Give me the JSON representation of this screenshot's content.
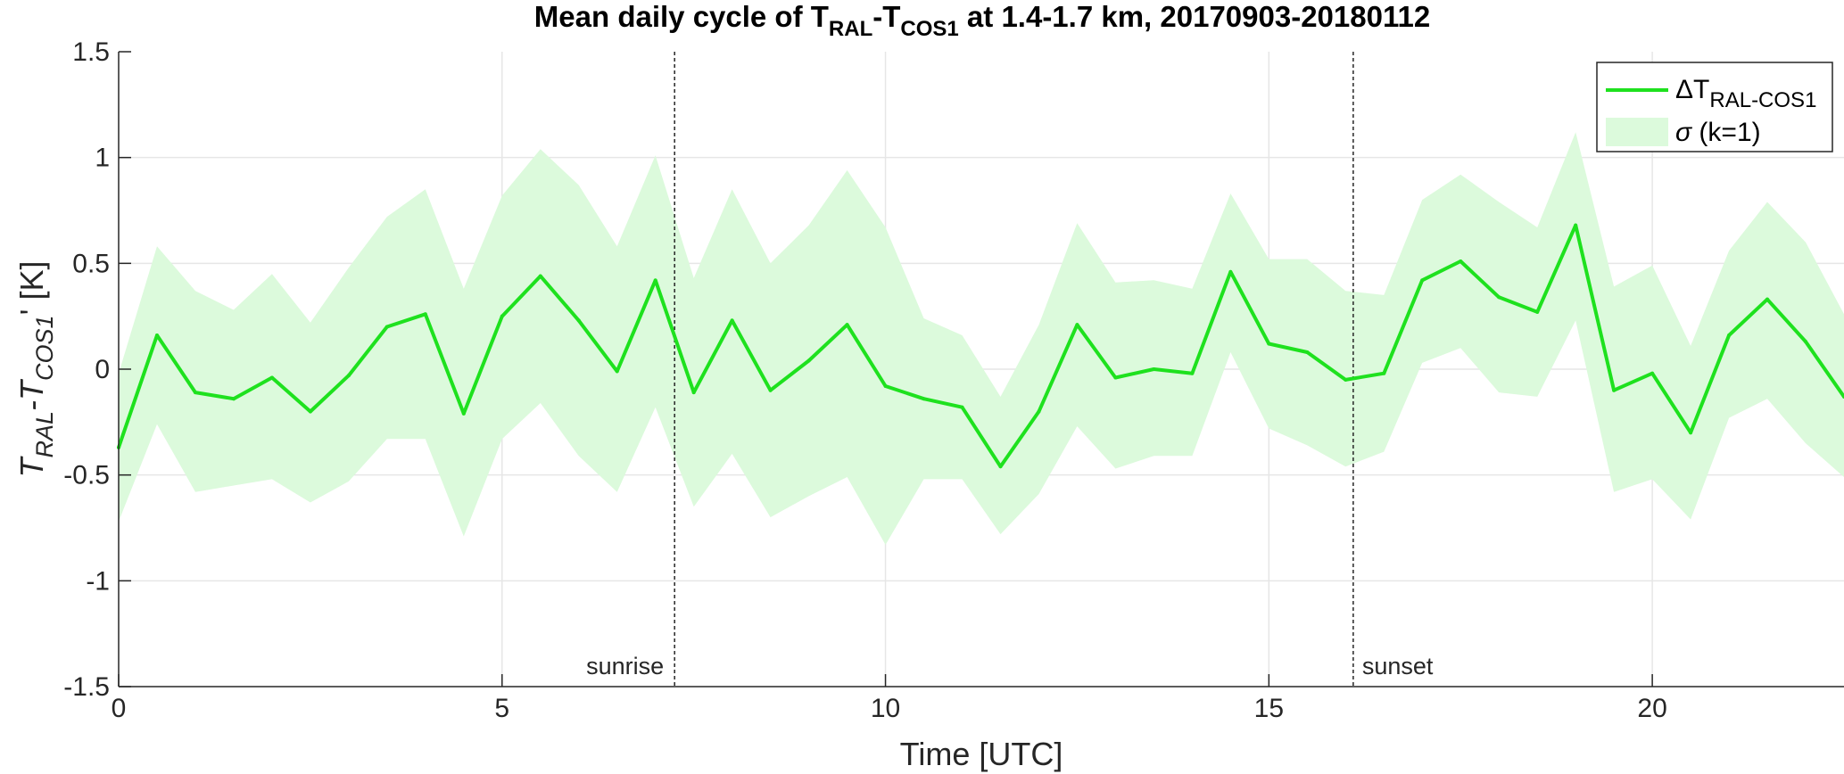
{
  "chart_data": {
    "type": "line",
    "title": {
      "pre": "Mean daily cycle of T",
      "sub1": "RAL",
      "mid": "-T",
      "sub2": "COS1",
      "post": " at 1.4-1.7 km, 20170903-20180112"
    },
    "xlabel": "Time [UTC]",
    "ylabel": {
      "t1": "T",
      "s1": "RAL",
      "dash": "-T",
      "s2": "COS1",
      "end": "' [K]"
    },
    "xlim": [
      0,
      22.5
    ],
    "ylim": [
      -1.5,
      1.5
    ],
    "xticks": [
      0,
      5,
      10,
      15,
      20
    ],
    "yticks": [
      -1.5,
      -1,
      -0.5,
      0,
      0.5,
      1,
      1.5
    ],
    "xtick_labels": [
      "0",
      "5",
      "10",
      "15",
      "20"
    ],
    "ytick_labels": [
      "-1.5",
      "-1",
      "-0.5",
      "0",
      "0.5",
      "1",
      "1.5"
    ],
    "grid": true,
    "legend_position": "top-right",
    "colors": {
      "line": "#1ee11e",
      "band": "#dcfadc"
    },
    "x": [
      0,
      0.5,
      1,
      1.5,
      2,
      2.5,
      3,
      3.5,
      4,
      4.5,
      5,
      5.5,
      6,
      6.5,
      7,
      7.5,
      8,
      8.5,
      9,
      9.5,
      10,
      10.5,
      11,
      11.5,
      12,
      12.5,
      13,
      13.5,
      14,
      14.5,
      15,
      15.5,
      16,
      16.5,
      17,
      17.5,
      18,
      18.5,
      19,
      19.5,
      20,
      20.5,
      21,
      21.5,
      22,
      22.5
    ],
    "series": [
      {
        "name": "ΔT_RAL-COS1",
        "legend_main": "ΔT",
        "legend_sub": "RAL-COS1",
        "values": [
          -0.37,
          0.16,
          -0.11,
          -0.14,
          -0.04,
          -0.2,
          -0.03,
          0.2,
          0.26,
          -0.21,
          0.25,
          0.44,
          0.23,
          -0.01,
          0.42,
          -0.11,
          0.23,
          -0.1,
          0.04,
          0.21,
          -0.08,
          -0.14,
          -0.18,
          -0.46,
          -0.2,
          0.21,
          -0.04,
          0.0,
          -0.02,
          0.46,
          0.12,
          0.08,
          -0.05,
          -0.02,
          0.42,
          0.51,
          0.34,
          0.27,
          0.68,
          -0.1,
          -0.02,
          -0.3,
          0.16,
          0.33,
          0.13,
          -0.13
        ]
      },
      {
        "name": "σ (k=1)",
        "legend_sigma": "σ",
        "legend_rest": " (k=1)",
        "upper": [
          -0.02,
          0.58,
          0.37,
          0.28,
          0.45,
          0.22,
          0.48,
          0.72,
          0.85,
          0.38,
          0.82,
          1.04,
          0.87,
          0.58,
          1.01,
          0.43,
          0.85,
          0.5,
          0.68,
          0.94,
          0.67,
          0.24,
          0.16,
          -0.13,
          0.21,
          0.69,
          0.41,
          0.42,
          0.38,
          0.83,
          0.52,
          0.52,
          0.37,
          0.35,
          0.8,
          0.92,
          0.79,
          0.67,
          1.12,
          0.39,
          0.49,
          0.11,
          0.56,
          0.79,
          0.6,
          0.26
        ],
        "lower": [
          -0.72,
          -0.26,
          -0.58,
          -0.55,
          -0.52,
          -0.63,
          -0.53,
          -0.33,
          -0.33,
          -0.79,
          -0.33,
          -0.16,
          -0.41,
          -0.58,
          -0.18,
          -0.65,
          -0.4,
          -0.7,
          -0.6,
          -0.51,
          -0.83,
          -0.52,
          -0.52,
          -0.78,
          -0.59,
          -0.27,
          -0.47,
          -0.41,
          -0.41,
          0.08,
          -0.28,
          -0.36,
          -0.46,
          -0.39,
          0.03,
          0.1,
          -0.11,
          -0.13,
          0.23,
          -0.58,
          -0.52,
          -0.71,
          -0.23,
          -0.14,
          -0.35,
          -0.51
        ]
      }
    ],
    "vlines": [
      {
        "x": 7.25,
        "label": "sunrise",
        "label_side": "left"
      },
      {
        "x": 16.1,
        "label": "sunset",
        "label_side": "right"
      }
    ]
  }
}
